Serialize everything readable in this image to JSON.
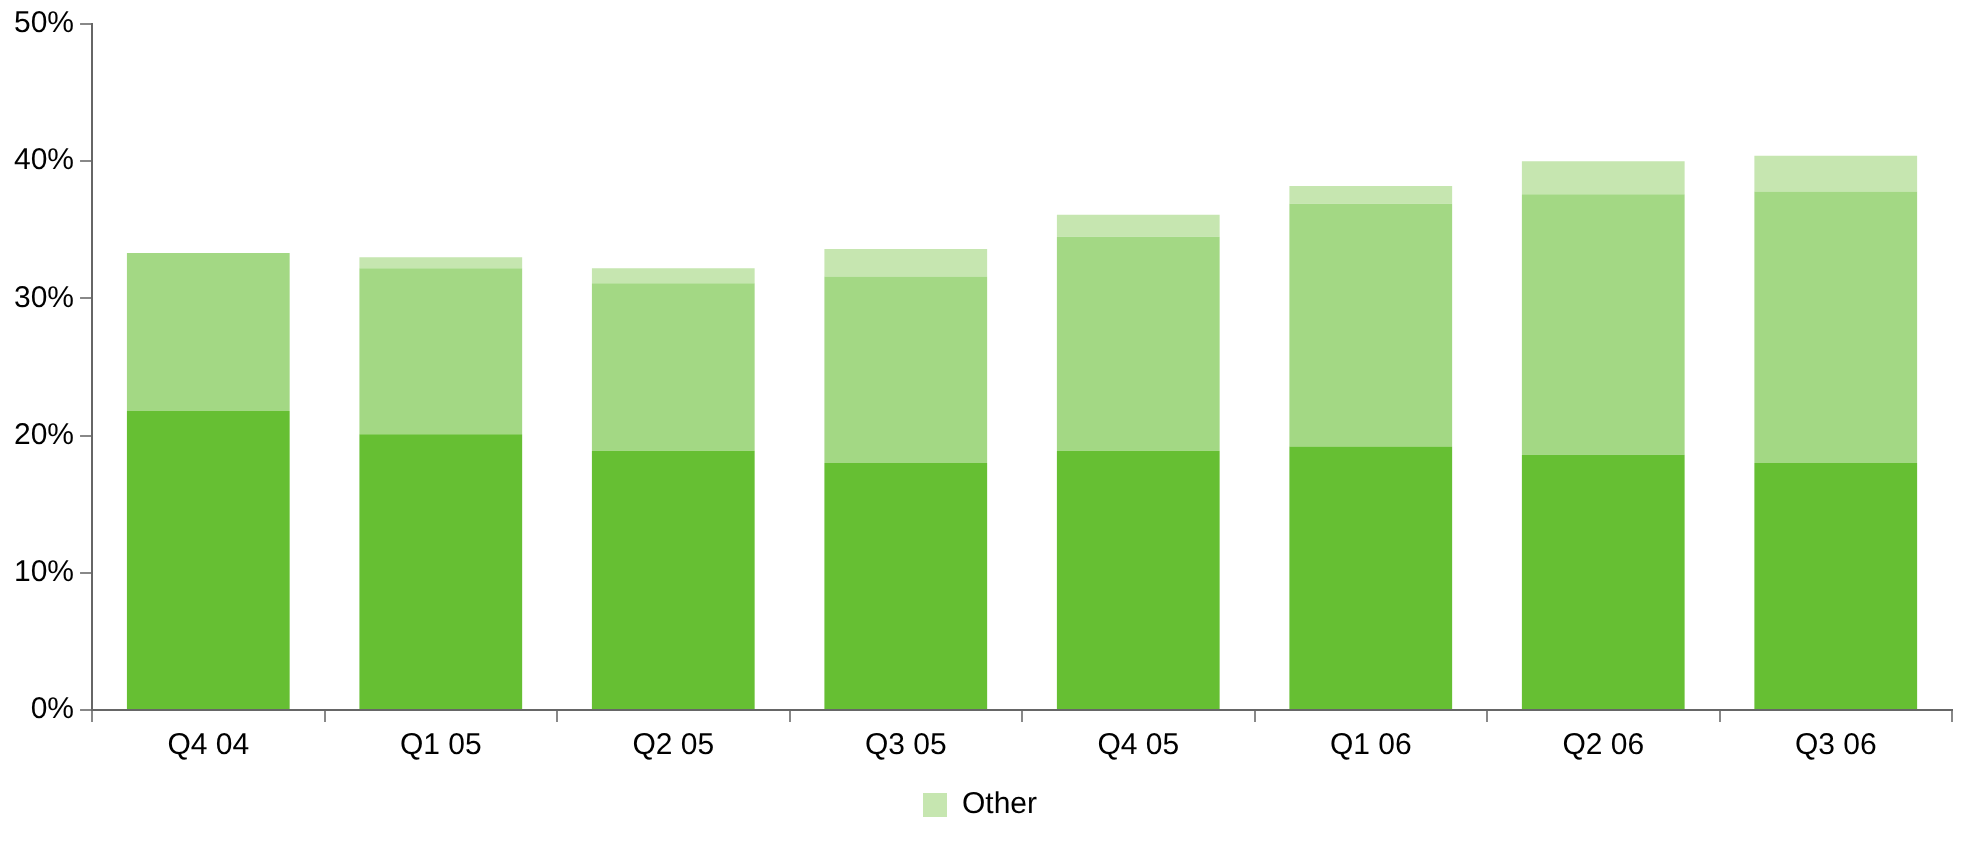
{
  "chart_data": {
    "type": "bar",
    "stacked": true,
    "categories": [
      "Q4 04",
      "Q1 05",
      "Q2 05",
      "Q3 05",
      "Q4 05",
      "Q1 06",
      "Q2 06",
      "Q3 06"
    ],
    "series": [
      {
        "color": "#66bf33",
        "values": [
          21.8,
          20.1,
          18.9,
          18.0,
          18.9,
          19.2,
          18.6,
          18.0
        ]
      },
      {
        "color": "#a3d884",
        "values": [
          11.5,
          12.1,
          12.2,
          13.6,
          15.6,
          17.7,
          19.0,
          19.8
        ]
      },
      {
        "name": "Other",
        "color": "#c6e6b0",
        "values": [
          0,
          0.8,
          1.1,
          2.0,
          1.6,
          1.3,
          2.4,
          2.6
        ]
      }
    ],
    "ylim": [
      0,
      50
    ],
    "yticks": [
      {
        "value": 0,
        "label": "0%"
      },
      {
        "value": 10,
        "label": "10%"
      },
      {
        "value": 20,
        "label": "20%"
      },
      {
        "value": 30,
        "label": "30%"
      },
      {
        "value": 40,
        "label": "40%"
      },
      {
        "value": 50,
        "label": "50%"
      }
    ],
    "grid": false,
    "legend": "bottom"
  }
}
